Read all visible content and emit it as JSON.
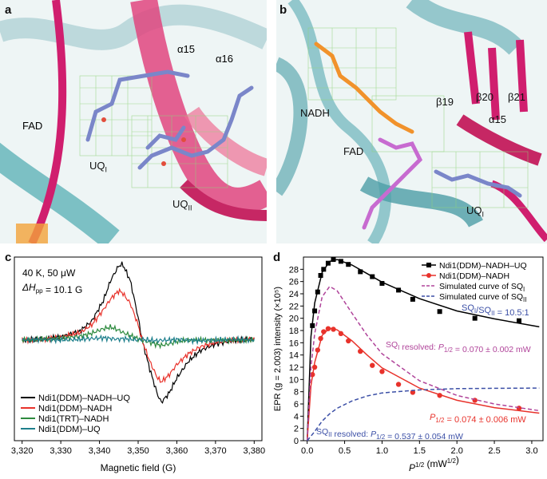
{
  "panels": {
    "a": {
      "label": "a",
      "annotations": {
        "alpha15": "α15",
        "alpha16": "α16",
        "fad": "FAD",
        "uq1": "UQ",
        "uq1_sub": "I",
        "uq2": "UQ",
        "uq2_sub": "II"
      }
    },
    "b": {
      "label": "b",
      "annotations": {
        "nadh": "NADH",
        "fad": "FAD",
        "beta19": "β19",
        "beta20": "β20",
        "beta21": "β21",
        "alpha15": "α15",
        "uq1": "UQ",
        "uq1_sub": "I"
      }
    },
    "c": {
      "label": "c",
      "conditions_line1": "40 K, 50 μW",
      "dh_prefix": "ΔH",
      "dh_sub": "pp",
      "dh_value": " = 10.1 G"
    },
    "d": {
      "label": "d"
    }
  },
  "chart_data": [
    {
      "type": "line",
      "panel": "c",
      "xlabel": "Magnetic field (G)",
      "ylabel": "",
      "xlim": [
        3318,
        3382
      ],
      "x_ticks": [
        3320,
        3330,
        3340,
        3350,
        3360,
        3370,
        3380
      ],
      "x_tick_labels": [
        "3,320",
        "3,330",
        "3,340",
        "3,350",
        "3,360",
        "3,370",
        "3,380"
      ],
      "legend_position": "bottom-left",
      "colors": {
        "Ndi1(DDM)–NADH–UQ": "#000000",
        "Ndi1(DDM)–NADH": "#e8322b",
        "Ndi1(TRT)–NADH": "#2d8a3e",
        "Ndi1(DDM)–UQ": "#1d7f8c"
      },
      "x": [
        3320,
        3325,
        3330,
        3335,
        3338,
        3341,
        3343,
        3345,
        3346,
        3348,
        3350,
        3351,
        3353,
        3355,
        3356,
        3358,
        3360,
        3363,
        3366,
        3370,
        3375,
        3380
      ],
      "series": [
        {
          "name": "Ndi1(DDM)–NADH–UQ",
          "values": [
            0.0,
            0.01,
            0.04,
            0.12,
            0.25,
            0.52,
            0.8,
            0.98,
            1.0,
            0.78,
            0.3,
            0.0,
            -0.38,
            -0.72,
            -0.82,
            -0.7,
            -0.5,
            -0.28,
            -0.14,
            -0.05,
            0.0,
            0.01
          ]
        },
        {
          "name": "Ndi1(DDM)–NADH",
          "values": [
            0.0,
            0.01,
            0.04,
            0.1,
            0.2,
            0.4,
            0.55,
            0.65,
            0.62,
            0.48,
            0.2,
            0.0,
            -0.28,
            -0.5,
            -0.55,
            -0.46,
            -0.32,
            -0.18,
            -0.09,
            -0.03,
            0.0,
            0.01
          ]
        },
        {
          "name": "Ndi1(TRT)–NADH",
          "values": [
            0.0,
            0.01,
            0.02,
            0.05,
            0.09,
            0.15,
            0.17,
            0.13,
            0.1,
            0.06,
            0.02,
            0.0,
            -0.03,
            -0.06,
            -0.07,
            -0.05,
            -0.02,
            0.0,
            0.0,
            0.0,
            0.0,
            0.0
          ]
        },
        {
          "name": "Ndi1(DDM)–UQ",
          "values": [
            0.0,
            0.01,
            0.0,
            0.01,
            0.02,
            0.03,
            0.02,
            0.01,
            0.02,
            0.01,
            0.0,
            0.01,
            0.0,
            -0.01,
            0.0,
            0.0,
            0.01,
            0.0,
            -0.01,
            0.0,
            0.01,
            0.0
          ]
        }
      ]
    },
    {
      "type": "scatter",
      "panel": "d",
      "ylabel": "EPR (g = 2.003) intensity (×10⁵)",
      "ylim": [
        0,
        30
      ],
      "xlim": [
        -0.05,
        3.15
      ],
      "x_ticks": [
        0.0,
        0.5,
        1.0,
        1.5,
        2.0,
        2.5,
        3.0
      ],
      "x_tick_labels": [
        "0.0",
        "0.5",
        "1.0",
        "1.5",
        "2.0",
        "2.5",
        "3.0"
      ],
      "y_ticks": [
        0,
        2,
        4,
        6,
        8,
        10,
        12,
        14,
        16,
        18,
        20,
        22,
        24,
        26,
        28
      ],
      "y_tick_labels": [
        "0",
        "2",
        "4",
        "6",
        "8",
        "10",
        "12",
        "14",
        "16",
        "18",
        "20",
        "22",
        "24",
        "26",
        "28"
      ],
      "legend_position": "top-right",
      "colors": {
        "black": "#000000",
        "red": "#e8322b",
        "magenta": "#b0449a",
        "blue": "#3b4fa6"
      },
      "series": [
        {
          "name": "Ndi1(DDM)–NADH–UQ",
          "points": [
            [
              0.07,
              18.8
            ],
            [
              0.1,
              21.2
            ],
            [
              0.14,
              24.3
            ],
            [
              0.18,
              27.0
            ],
            [
              0.22,
              28.0
            ],
            [
              0.28,
              29.0
            ],
            [
              0.35,
              29.6
            ],
            [
              0.45,
              29.3
            ],
            [
              0.55,
              28.8
            ],
            [
              0.71,
              27.6
            ],
            [
              0.87,
              26.8
            ],
            [
              1.0,
              25.7
            ],
            [
              1.22,
              24.6
            ],
            [
              1.41,
              23.1
            ],
            [
              1.77,
              21.1
            ],
            [
              2.24,
              20.0
            ],
            [
              2.83,
              19.6
            ]
          ],
          "fit": [
            [
              0.0,
              0.0
            ],
            [
              0.05,
              17.0
            ],
            [
              0.1,
              22.5
            ],
            [
              0.2,
              27.5
            ],
            [
              0.3,
              29.3
            ],
            [
              0.4,
              29.6
            ],
            [
              0.6,
              28.7
            ],
            [
              0.8,
              27.3
            ],
            [
              1.0,
              25.9
            ],
            [
              1.5,
              23.2
            ],
            [
              2.0,
              21.2
            ],
            [
              2.5,
              19.9
            ],
            [
              3.1,
              18.6
            ]
          ]
        },
        {
          "name": "Ndi1(DDM)–NADH",
          "points": [
            [
              0.07,
              10.8
            ],
            [
              0.1,
              12.0
            ],
            [
              0.14,
              14.8
            ],
            [
              0.18,
              16.7
            ],
            [
              0.22,
              17.8
            ],
            [
              0.28,
              18.3
            ],
            [
              0.35,
              18.2
            ],
            [
              0.45,
              17.5
            ],
            [
              0.55,
              16.3
            ],
            [
              0.71,
              14.6
            ],
            [
              0.87,
              12.3
            ],
            [
              1.0,
              11.3
            ],
            [
              1.22,
              9.2
            ],
            [
              1.41,
              7.9
            ],
            [
              1.77,
              7.4
            ],
            [
              2.24,
              6.6
            ],
            [
              2.83,
              5.3
            ]
          ],
          "fit": [
            [
              0.0,
              0.0
            ],
            [
              0.05,
              9.0
            ],
            [
              0.1,
              12.8
            ],
            [
              0.2,
              17.2
            ],
            [
              0.3,
              18.4
            ],
            [
              0.4,
              18.1
            ],
            [
              0.6,
              16.3
            ],
            [
              0.8,
              14.0
            ],
            [
              1.0,
              11.9
            ],
            [
              1.5,
              8.6
            ],
            [
              2.0,
              6.6
            ],
            [
              2.5,
              5.4
            ],
            [
              3.1,
              4.5
            ]
          ]
        },
        {
          "name": "Simulated curve of SQI",
          "fit": [
            [
              0.0,
              0.0
            ],
            [
              0.05,
              12.0
            ],
            [
              0.1,
              17.5
            ],
            [
              0.2,
              23.5
            ],
            [
              0.3,
              25.2
            ],
            [
              0.4,
              24.5
            ],
            [
              0.6,
              20.8
            ],
            [
              0.8,
              17.2
            ],
            [
              1.0,
              14.2
            ],
            [
              1.5,
              9.8
            ],
            [
              2.0,
              7.4
            ],
            [
              2.5,
              6.0
            ],
            [
              3.1,
              4.9
            ]
          ]
        },
        {
          "name": "Simulated curve of SQII",
          "fit": [
            [
              0.0,
              0.0
            ],
            [
              0.1,
              1.5
            ],
            [
              0.2,
              3.2
            ],
            [
              0.3,
              4.4
            ],
            [
              0.4,
              5.3
            ],
            [
              0.6,
              6.5
            ],
            [
              0.8,
              7.3
            ],
            [
              1.0,
              7.8
            ],
            [
              1.5,
              8.3
            ],
            [
              2.0,
              8.5
            ],
            [
              2.5,
              8.55
            ],
            [
              3.1,
              8.6
            ]
          ]
        }
      ],
      "legend": [
        {
          "label": "Ndi1(DDM)–NADH–UQ"
        },
        {
          "label": "Ndi1(DDM)–NADH"
        },
        {
          "label": "Simulated curve of  SQ",
          "sub": "I"
        },
        {
          "label": "Simulated curve of  SQ",
          "sub": "II"
        }
      ],
      "annotations": {
        "ratio": "SQ",
        "ratio_sub1": "I",
        "ratio_mid": "/SQ",
        "ratio_sub2": "II",
        "ratio_val": " = 10.5:1",
        "sq1_res": "SQ",
        "sq1_res_sub": "I",
        "sq1_res_mid": " resolved: ",
        "sq1_p": "P",
        "sq1_p_sub": "1/2",
        "sq1_val": " = 0.070 ± 0.002 mW",
        "red_p": "P",
        "red_p_sub": "1/2",
        "red_val": " = 0.074 ± 0.006 mW",
        "sq2_res": "SQ",
        "sq2_res_sub": "II",
        "sq2_res_mid": " resolved: ",
        "sq2_p": "P",
        "sq2_p_sub": "1/2",
        "sq2_val": " = 0.537 ± 0.054 mW"
      },
      "xlabel_main": "P",
      "xlabel_sup": "1/2",
      "xlabel_unit": " (mW",
      "xlabel_unit_sup": "1/2",
      "xlabel_close": ")"
    }
  ]
}
